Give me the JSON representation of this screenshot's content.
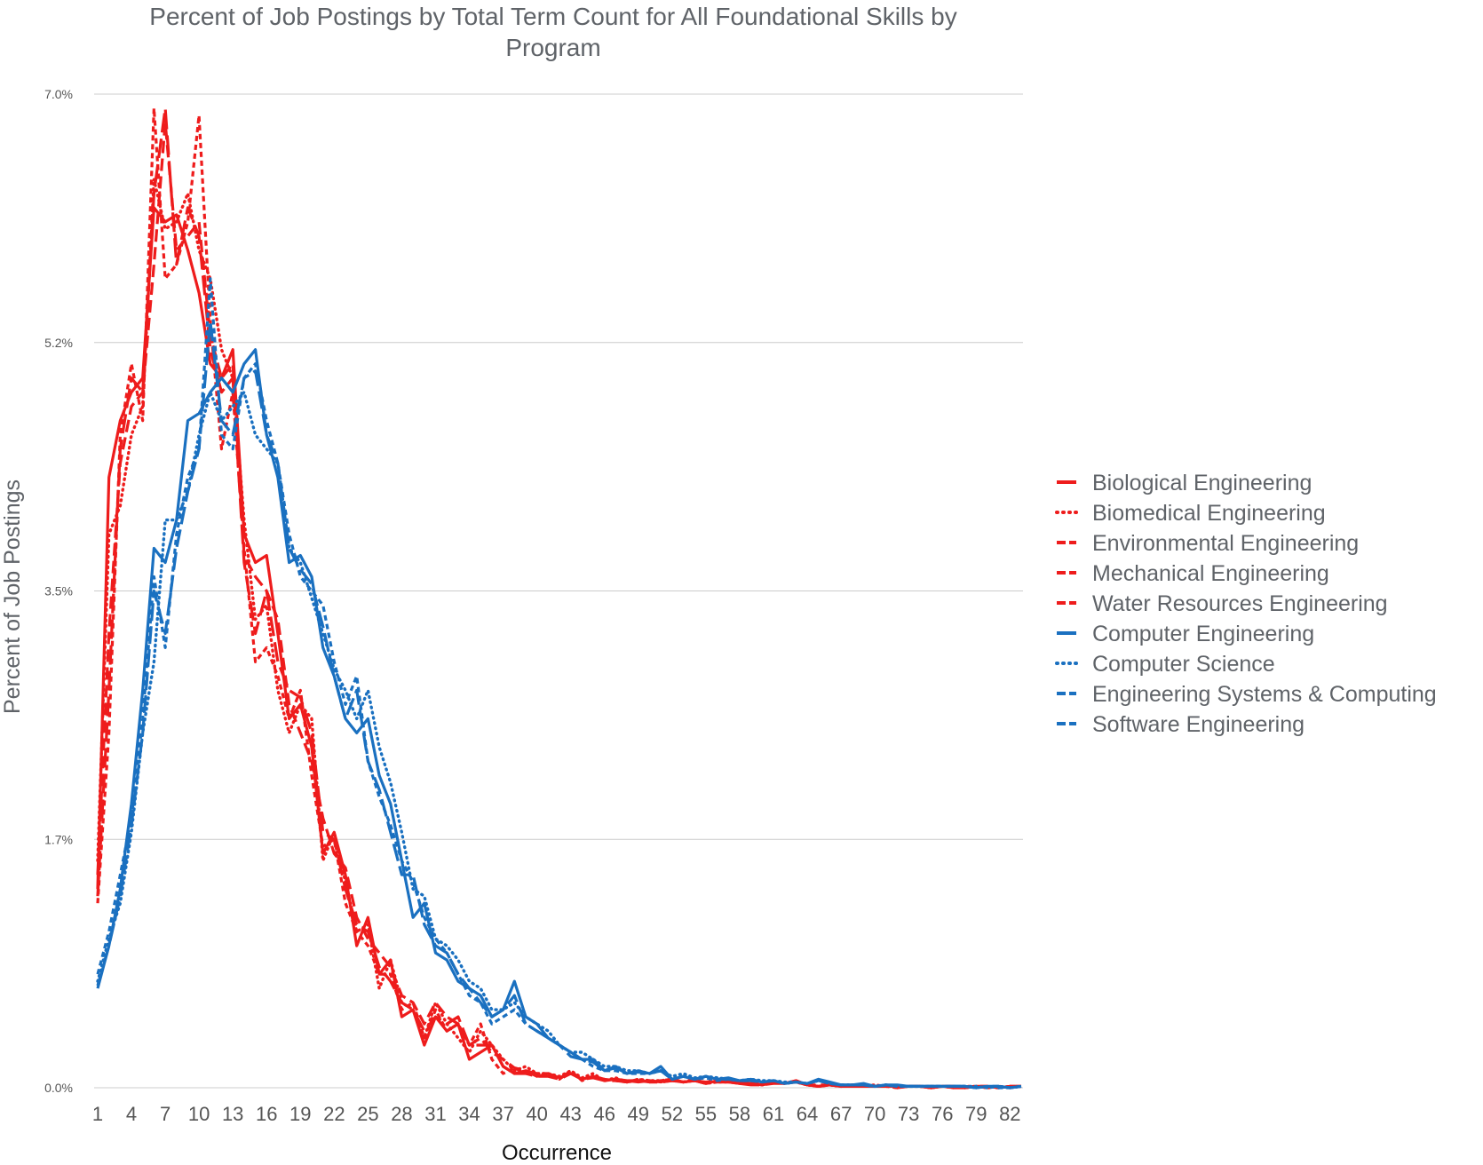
{
  "chart_data": {
    "type": "line",
    "title_line1": "Percent of Job Postings by Total Term Count for All Foundational Skills by",
    "title_line2": "Program",
    "xlabel": "Occurrence",
    "ylabel": "Percent of Job Postings",
    "ylim": [
      0,
      7.0
    ],
    "yticks": [
      0.0,
      1.75,
      3.5,
      5.25,
      7.0
    ],
    "ytick_labels": [
      "0.0%",
      "1.7%",
      "3.5%",
      "5.2%",
      "7.0%"
    ],
    "xtick_labels": [
      "1",
      "4",
      "7",
      "10",
      "13",
      "16",
      "19",
      "22",
      "25",
      "28",
      "31",
      "34",
      "37",
      "40",
      "43",
      "46",
      "49",
      "52",
      "55",
      "58",
      "61",
      "64",
      "67",
      "70",
      "73",
      "76",
      "79",
      "82"
    ],
    "x_range": [
      1,
      83
    ],
    "grid": true,
    "legend_position": "right",
    "colors": {
      "red": "#ee1c1c",
      "blue": "#1a70c0"
    },
    "series": [
      {
        "name": "Biological Engineering",
        "color": "#ee1c1c",
        "dash": "solid",
        "values": [
          1.4,
          4.3,
          4.7,
          4.9,
          5.0,
          6.2,
          6.1,
          6.15,
          5.9,
          5.6,
          5.1,
          5.0,
          5.2,
          3.9,
          3.7,
          3.75,
          3.2,
          2.6,
          2.7,
          2.4,
          1.65,
          1.8,
          1.5,
          1.0,
          1.2,
          0.8,
          0.9,
          0.5,
          0.55,
          0.3,
          0.5,
          0.4,
          0.45,
          0.2,
          0.25,
          0.3,
          0.15,
          0.1,
          0.12,
          0.08,
          0.1,
          0.07,
          0.1,
          0.06,
          0.08,
          0.05,
          0.06,
          0.05,
          0.04,
          0.05,
          0.04,
          0.06,
          0.04,
          0.05,
          0.03,
          0.05,
          0.04,
          0.03,
          0.03,
          0.02,
          0.04,
          0.03,
          0.05,
          0.02,
          0.01,
          0.02,
          0.01,
          0.02,
          0.01,
          0.01,
          0.01,
          0.01,
          0.01,
          0.01,
          0.0,
          0.01,
          0.01,
          0.0,
          0.01,
          0.01,
          0.0,
          0.01,
          0.01
        ]
      },
      {
        "name": "Biomedical Engineering",
        "color": "#ee1c1c",
        "dash": "dotted",
        "values": [
          1.6,
          3.9,
          4.1,
          4.6,
          4.8,
          6.4,
          6.05,
          6.1,
          6.3,
          5.9,
          5.7,
          5.2,
          5.0,
          4.0,
          3.3,
          3.4,
          2.8,
          2.5,
          2.7,
          2.6,
          1.6,
          1.8,
          1.45,
          1.1,
          1.15,
          0.7,
          0.9,
          0.6,
          0.55,
          0.35,
          0.6,
          0.45,
          0.35,
          0.25,
          0.4,
          0.3,
          0.2,
          0.12,
          0.15,
          0.1,
          0.1,
          0.08,
          0.12,
          0.07,
          0.1,
          0.05,
          0.07,
          0.04,
          0.06,
          0.05,
          0.05,
          0.06,
          0.04,
          0.06,
          0.03,
          0.04,
          0.04,
          0.05,
          0.03,
          0.03,
          0.04,
          0.03,
          0.04,
          0.02,
          0.01,
          0.02,
          0.01,
          0.02,
          0.01,
          0.02,
          0.01,
          0.01,
          0.01,
          0.01,
          0.01,
          0.01,
          0.0,
          0.01,
          0.01,
          0.0,
          0.01,
          0.0,
          0.01
        ]
      },
      {
        "name": "Environmental Engineering",
        "color": "#ee1c1c",
        "dash": "6,4",
        "values": [
          1.3,
          2.5,
          4.6,
          5.1,
          4.7,
          6.9,
          5.7,
          5.8,
          6.1,
          6.85,
          5.4,
          4.5,
          4.9,
          3.8,
          3.0,
          3.1,
          2.9,
          2.6,
          2.8,
          2.2,
          1.7,
          1.75,
          1.3,
          1.1,
          1.0,
          0.8,
          0.8,
          0.55,
          0.6,
          0.35,
          0.55,
          0.4,
          0.45,
          0.3,
          0.45,
          0.2,
          0.1,
          0.14,
          0.1,
          0.1,
          0.09,
          0.06,
          0.12,
          0.05,
          0.08,
          0.06,
          0.05,
          0.04,
          0.06,
          0.04,
          0.05,
          0.06,
          0.04,
          0.05,
          0.03,
          0.05,
          0.05,
          0.03,
          0.03,
          0.02,
          0.04,
          0.03,
          0.05,
          0.02,
          0.01,
          0.02,
          0.01,
          0.01,
          0.01,
          0.01,
          0.01,
          0.0,
          0.01,
          0.01,
          0.0,
          0.01,
          0.01,
          0.0,
          0.01,
          0.0,
          0.01,
          0.0,
          0.01
        ]
      },
      {
        "name": "Mechanical Engineering",
        "color": "#ee1c1c",
        "dash": "14,6",
        "values": [
          1.5,
          3.2,
          4.4,
          4.8,
          4.9,
          5.8,
          6.8,
          5.9,
          6.0,
          6.1,
          5.3,
          5.0,
          5.1,
          3.75,
          3.6,
          3.5,
          3.3,
          2.7,
          2.5,
          2.3,
          1.9,
          1.65,
          1.55,
          1.2,
          1.05,
          0.95,
          0.85,
          0.65,
          0.6,
          0.45,
          0.6,
          0.5,
          0.45,
          0.3,
          0.35,
          0.25,
          0.2,
          0.14,
          0.12,
          0.1,
          0.1,
          0.07,
          0.1,
          0.06,
          0.08,
          0.06,
          0.06,
          0.05,
          0.05,
          0.05,
          0.04,
          0.05,
          0.04,
          0.05,
          0.04,
          0.05,
          0.04,
          0.03,
          0.03,
          0.02,
          0.04,
          0.03,
          0.05,
          0.02,
          0.02,
          0.02,
          0.01,
          0.02,
          0.01,
          0.01,
          0.01,
          0.01,
          0.01,
          0.01,
          0.0,
          0.01,
          0.01,
          0.0,
          0.01,
          0.01,
          0.0,
          0.01,
          0.01
        ]
      },
      {
        "name": "Water Resources Engineering",
        "color": "#ee1c1c",
        "dash": "22,7",
        "values": [
          1.35,
          2.8,
          4.5,
          5.0,
          4.9,
          6.3,
          6.9,
          5.8,
          6.2,
          6.0,
          5.2,
          4.9,
          5.0,
          3.7,
          3.2,
          3.5,
          3.0,
          2.8,
          2.75,
          2.5,
          1.8,
          1.75,
          1.4,
          1.15,
          1.1,
          0.85,
          0.75,
          0.6,
          0.55,
          0.4,
          0.5,
          0.45,
          0.5,
          0.3,
          0.3,
          0.3,
          0.15,
          0.1,
          0.1,
          0.08,
          0.08,
          0.06,
          0.1,
          0.06,
          0.07,
          0.05,
          0.05,
          0.04,
          0.05,
          0.04,
          0.04,
          0.05,
          0.04,
          0.05,
          0.03,
          0.04,
          0.04,
          0.03,
          0.02,
          0.02,
          0.03,
          0.03,
          0.04,
          0.02,
          0.01,
          0.02,
          0.01,
          0.01,
          0.01,
          0.01,
          0.01,
          0.0,
          0.01,
          0.01,
          0.0,
          0.01,
          0.0,
          0.0,
          0.01,
          0.0,
          0.0,
          0.01,
          0.01
        ]
      },
      {
        "name": "Computer Engineering",
        "color": "#1a70c0",
        "dash": "solid",
        "values": [
          0.7,
          1.0,
          1.4,
          2.0,
          2.8,
          3.8,
          3.7,
          4.0,
          4.7,
          4.75,
          4.9,
          5.0,
          4.9,
          5.1,
          5.2,
          4.6,
          4.3,
          3.7,
          3.75,
          3.6,
          3.1,
          2.9,
          2.6,
          2.5,
          2.6,
          2.2,
          2.0,
          1.6,
          1.2,
          1.3,
          0.95,
          0.9,
          0.75,
          0.7,
          0.65,
          0.5,
          0.55,
          0.75,
          0.5,
          0.45,
          0.35,
          0.3,
          0.25,
          0.2,
          0.2,
          0.12,
          0.15,
          0.1,
          0.12,
          0.1,
          0.15,
          0.06,
          0.08,
          0.06,
          0.08,
          0.06,
          0.07,
          0.05,
          0.06,
          0.04,
          0.05,
          0.03,
          0.04,
          0.03,
          0.06,
          0.04,
          0.02,
          0.02,
          0.03,
          0.01,
          0.02,
          0.02,
          0.01,
          0.01,
          0.01,
          0.01,
          0.01,
          0.01,
          0.0,
          0.01,
          0.01,
          0.0,
          0.01
        ]
      },
      {
        "name": "Computer Science",
        "color": "#1a70c0",
        "dash": "dotted",
        "values": [
          0.75,
          1.05,
          1.3,
          1.8,
          2.5,
          3.0,
          4.0,
          4.0,
          4.2,
          4.6,
          4.9,
          4.7,
          4.8,
          4.9,
          4.6,
          4.5,
          4.4,
          3.8,
          3.7,
          3.45,
          3.2,
          2.95,
          2.8,
          2.6,
          2.8,
          2.4,
          2.15,
          1.8,
          1.4,
          1.35,
          1.05,
          1.0,
          0.9,
          0.75,
          0.7,
          0.55,
          0.55,
          0.6,
          0.5,
          0.45,
          0.4,
          0.3,
          0.25,
          0.25,
          0.2,
          0.15,
          0.15,
          0.12,
          0.12,
          0.1,
          0.12,
          0.08,
          0.1,
          0.07,
          0.08,
          0.07,
          0.06,
          0.05,
          0.06,
          0.05,
          0.05,
          0.04,
          0.04,
          0.03,
          0.05,
          0.03,
          0.02,
          0.02,
          0.02,
          0.01,
          0.02,
          0.01,
          0.01,
          0.01,
          0.01,
          0.01,
          0.01,
          0.01,
          0.01,
          0.0,
          0.01,
          0.0,
          0.01
        ]
      },
      {
        "name": "Engineering Systems & Computing",
        "color": "#1a70c0",
        "dash": "6,4",
        "values": [
          0.8,
          1.1,
          1.5,
          1.9,
          2.6,
          3.6,
          3.1,
          3.9,
          4.3,
          4.5,
          5.7,
          4.6,
          4.5,
          5.0,
          5.1,
          4.7,
          4.4,
          3.9,
          3.6,
          3.5,
          3.4,
          3.0,
          2.7,
          2.9,
          2.3,
          2.05,
          1.85,
          1.6,
          1.45,
          1.2,
          1.05,
          0.95,
          0.8,
          0.65,
          0.6,
          0.45,
          0.5,
          0.55,
          0.45,
          0.4,
          0.35,
          0.3,
          0.25,
          0.2,
          0.15,
          0.12,
          0.12,
          0.1,
          0.1,
          0.1,
          0.12,
          0.06,
          0.08,
          0.06,
          0.07,
          0.05,
          0.06,
          0.05,
          0.05,
          0.04,
          0.05,
          0.03,
          0.04,
          0.03,
          0.05,
          0.03,
          0.02,
          0.02,
          0.02,
          0.01,
          0.02,
          0.01,
          0.01,
          0.01,
          0.01,
          0.01,
          0.01,
          0.01,
          0.0,
          0.01,
          0.0,
          0.0,
          0.01
        ]
      },
      {
        "name": "Software Engineering",
        "color": "#1a70c0",
        "dash": "20,6",
        "values": [
          0.72,
          1.0,
          1.35,
          1.85,
          2.5,
          3.5,
          3.2,
          3.8,
          4.2,
          4.5,
          5.4,
          4.7,
          4.6,
          5.0,
          5.05,
          4.6,
          4.4,
          3.8,
          3.65,
          3.55,
          3.25,
          2.9,
          2.6,
          2.8,
          2.3,
          2.1,
          1.8,
          1.5,
          1.5,
          1.15,
          1.0,
          0.95,
          0.8,
          0.7,
          0.6,
          0.5,
          0.55,
          0.65,
          0.45,
          0.4,
          0.35,
          0.3,
          0.22,
          0.2,
          0.18,
          0.12,
          0.14,
          0.1,
          0.11,
          0.1,
          0.12,
          0.06,
          0.08,
          0.06,
          0.08,
          0.06,
          0.06,
          0.05,
          0.05,
          0.04,
          0.05,
          0.03,
          0.04,
          0.03,
          0.05,
          0.03,
          0.02,
          0.02,
          0.02,
          0.01,
          0.02,
          0.01,
          0.01,
          0.01,
          0.01,
          0.01,
          0.01,
          0.01,
          0.0,
          0.01,
          0.01,
          0.0,
          0.01
        ]
      }
    ]
  }
}
